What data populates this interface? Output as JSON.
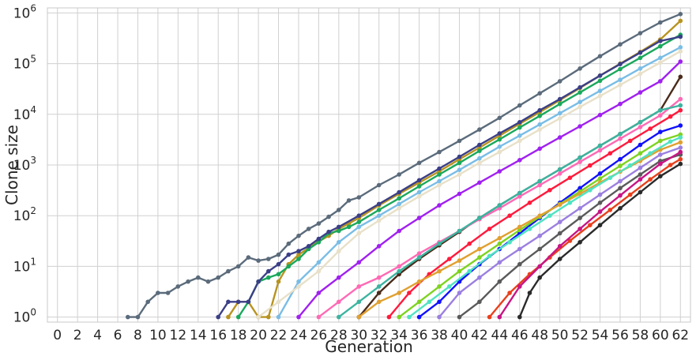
{
  "chart_data": {
    "type": "line",
    "xlabel": "Generation",
    "ylabel": "Clone size",
    "xlim": [
      -1,
      63
    ],
    "ylim_log10": [
      -0.1,
      6.1
    ],
    "y_scale": "log",
    "grid": true,
    "x_ticks": [
      "0",
      "2",
      "4",
      "6",
      "8",
      "10",
      "12",
      "14",
      "16",
      "18",
      "20",
      "22",
      "24",
      "26",
      "28",
      "30",
      "32",
      "34",
      "36",
      "38",
      "40",
      "42",
      "44",
      "46",
      "48",
      "50",
      "52",
      "54",
      "56",
      "58",
      "60",
      "62"
    ],
    "y_ticks": [
      {
        "base": "10",
        "exp": "0",
        "value": 1
      },
      {
        "base": "10",
        "exp": "1",
        "value": 10
      },
      {
        "base": "10",
        "exp": "2",
        "value": 100
      },
      {
        "base": "10",
        "exp": "3",
        "value": 1000
      },
      {
        "base": "10",
        "exp": "4",
        "value": 10000
      },
      {
        "base": "10",
        "exp": "5",
        "value": 100000
      },
      {
        "base": "10",
        "exp": "6",
        "value": 1000000
      }
    ],
    "series": [
      {
        "color": "#5b6b7b",
        "x": [
          7,
          8,
          9,
          10,
          11,
          12,
          13,
          14,
          15,
          16,
          17,
          18,
          19,
          20,
          21,
          22,
          23,
          24,
          25,
          26,
          27,
          28,
          29,
          30,
          32,
          34,
          36,
          38,
          40,
          42,
          44,
          46,
          48,
          50,
          52,
          54,
          56,
          58,
          60,
          62
        ],
        "y": [
          1,
          1,
          2,
          3,
          3,
          4,
          5,
          6,
          5,
          6,
          8,
          10,
          15,
          13,
          14,
          17,
          28,
          40,
          55,
          70,
          95,
          130,
          200,
          230,
          400,
          650,
          1100,
          1800,
          3000,
          5000,
          8500,
          15000,
          26000,
          45000,
          80000,
          140000,
          240000,
          400000,
          650000,
          950000
        ]
      },
      {
        "color": "#b8931f",
        "x": [
          17,
          18,
          19,
          20,
          21,
          22,
          23,
          24,
          25,
          26,
          27,
          28,
          29,
          30,
          32,
          34,
          36,
          38,
          40,
          42,
          44,
          46,
          48,
          50,
          52,
          54,
          56,
          58,
          60,
          62
        ],
        "y": [
          1,
          2,
          2,
          1,
          1,
          5,
          11,
          17,
          23,
          31,
          40,
          55,
          70,
          90,
          160,
          270,
          450,
          750,
          1300,
          2200,
          3800,
          6500,
          11000,
          19000,
          33000,
          58000,
          100000,
          170000,
          300000,
          700000
        ]
      },
      {
        "color": "#1aa85c",
        "x": [
          18,
          19,
          20,
          21,
          22,
          23,
          24,
          25,
          26,
          27,
          28,
          29,
          30,
          32,
          34,
          36,
          38,
          40,
          42,
          44,
          46,
          48,
          50,
          52,
          54,
          56,
          58,
          60,
          62
        ],
        "y": [
          1,
          2,
          5,
          6,
          7,
          10,
          14,
          22,
          30,
          45,
          50,
          60,
          75,
          130,
          220,
          380,
          650,
          1100,
          1900,
          3200,
          5500,
          9300,
          16000,
          27000,
          46000,
          78000,
          130000,
          220000,
          370000
        ]
      },
      {
        "color": "#3b3f87",
        "x": [
          16,
          17,
          18,
          19,
          20,
          21,
          22,
          23,
          24,
          25,
          26,
          27,
          28,
          30,
          32,
          34,
          36,
          38,
          40,
          42,
          44,
          46,
          48,
          50,
          52,
          54,
          56,
          58,
          60,
          62
        ],
        "y": [
          1,
          2,
          2,
          2,
          5,
          8,
          11,
          17,
          20,
          25,
          35,
          48,
          60,
          100,
          170,
          290,
          500,
          850,
          1450,
          2500,
          4200,
          7000,
          12000,
          20000,
          34000,
          58000,
          98000,
          165000,
          280000,
          340000
        ]
      },
      {
        "color": "#79bde6",
        "x": [
          22,
          24,
          26,
          28,
          30,
          32,
          34,
          36,
          38,
          40,
          42,
          44,
          46,
          48,
          50,
          52,
          54,
          56,
          58,
          60,
          62
        ],
        "y": [
          1,
          5,
          12,
          30,
          60,
          100,
          170,
          290,
          480,
          800,
          1350,
          2300,
          3800,
          6300,
          10500,
          17500,
          29000,
          48000,
          80000,
          130000,
          210000
        ]
      },
      {
        "color": "#a020f0",
        "x": [
          24,
          26,
          28,
          30,
          32,
          34,
          36,
          38,
          40,
          42,
          44,
          46,
          48,
          50,
          52,
          54,
          56,
          58,
          60,
          62
        ],
        "y": [
          1,
          3,
          6,
          12,
          25,
          50,
          90,
          160,
          270,
          450,
          750,
          1250,
          2100,
          3500,
          5800,
          9700,
          16000,
          27000,
          45000,
          110000
        ]
      },
      {
        "color": "#e8e0c8",
        "x": [
          20,
          22,
          24,
          26,
          28,
          30,
          32,
          34,
          36,
          38,
          40,
          42,
          44,
          46,
          48,
          50,
          52,
          54,
          56,
          58,
          60,
          62
        ],
        "y": [
          1,
          2,
          4,
          8,
          20,
          45,
          80,
          140,
          240,
          400,
          650,
          1100,
          1800,
          3000,
          5000,
          8300,
          14000,
          23000,
          38000,
          63000,
          105000,
          175000
        ]
      },
      {
        "color": "#4a2b1a",
        "x": [
          30,
          32,
          34,
          36,
          38,
          40,
          42,
          44,
          46,
          48,
          50,
          52,
          54,
          56,
          58,
          60,
          62
        ],
        "y": [
          1,
          3,
          7,
          14,
          26,
          48,
          90,
          160,
          280,
          480,
          820,
          1400,
          2400,
          4100,
          7000,
          12000,
          55000
        ]
      },
      {
        "color": "#ff69b4",
        "x": [
          26,
          28,
          30,
          32,
          34,
          36,
          38,
          40,
          42,
          44,
          46,
          48,
          50,
          52,
          54,
          56,
          58,
          60,
          62
        ],
        "y": [
          1,
          2,
          4,
          6,
          10,
          18,
          30,
          50,
          85,
          140,
          240,
          400,
          680,
          1150,
          1950,
          3300,
          5600,
          9500,
          20000
        ]
      },
      {
        "color": "#3cb4a0",
        "x": [
          28,
          30,
          32,
          34,
          36,
          38,
          40,
          42,
          44,
          46,
          48,
          50,
          52,
          54,
          56,
          58,
          60,
          62
        ],
        "y": [
          1,
          2,
          4,
          8,
          15,
          28,
          50,
          90,
          160,
          280,
          480,
          820,
          1400,
          2400,
          4100,
          7000,
          12000,
          15000
        ]
      },
      {
        "color": "#ff1a3c",
        "x": [
          33,
          35,
          37,
          39,
          41,
          43,
          45,
          47,
          49,
          51,
          53,
          55,
          57,
          59,
          61,
          62
        ],
        "y": [
          1,
          3,
          7,
          14,
          28,
          55,
          100,
          180,
          320,
          560,
          980,
          1700,
          3000,
          5200,
          9000,
          12000
        ]
      },
      {
        "color": "#1010ff",
        "x": [
          36,
          38,
          40,
          42,
          44,
          46,
          48,
          50,
          52,
          54,
          56,
          58,
          60,
          62
        ],
        "y": [
          1,
          2,
          5,
          11,
          22,
          45,
          90,
          180,
          350,
          680,
          1300,
          2500,
          4500,
          6000
        ]
      },
      {
        "color": "#7ed321",
        "x": [
          34,
          36,
          38,
          40,
          42,
          44,
          46,
          48,
          50,
          52,
          54,
          56,
          58,
          60,
          62
        ],
        "y": [
          1,
          2,
          4,
          8,
          15,
          28,
          52,
          95,
          170,
          300,
          540,
          960,
          1700,
          3000,
          4000
        ]
      },
      {
        "color": "#e0a030",
        "x": [
          30,
          32,
          34,
          36,
          38,
          40,
          42,
          44,
          46,
          48,
          50,
          52,
          54,
          56,
          58,
          60,
          62
        ],
        "y": [
          1,
          2,
          3,
          5,
          8,
          13,
          22,
          36,
          60,
          100,
          165,
          270,
          450,
          740,
          1200,
          2000,
          2800
        ]
      },
      {
        "color": "#9b7fe0",
        "x": [
          38,
          40,
          42,
          44,
          46,
          48,
          50,
          52,
          54,
          56,
          58,
          60,
          62
        ],
        "y": [
          1,
          3,
          6,
          12,
          22,
          40,
          75,
          140,
          260,
          480,
          880,
          1600,
          2200
        ]
      },
      {
        "color": "#5a5a5a",
        "x": [
          40,
          42,
          44,
          46,
          48,
          50,
          52,
          54,
          56,
          58,
          60,
          62
        ],
        "y": [
          1,
          2,
          5,
          11,
          22,
          45,
          90,
          180,
          350,
          650,
          1200,
          1600
        ]
      },
      {
        "color": "#e8401c",
        "x": [
          43,
          45,
          47,
          49,
          51,
          53,
          55,
          57,
          59,
          61,
          62
        ],
        "y": [
          1,
          3,
          7,
          15,
          32,
          65,
          130,
          260,
          520,
          1000,
          1300
        ]
      },
      {
        "color": "#2a2a2a",
        "x": [
          46,
          47,
          48,
          50,
          52,
          54,
          56,
          58,
          60,
          62
        ],
        "y": [
          1,
          3,
          6,
          14,
          30,
          65,
          140,
          290,
          600,
          1050
        ]
      },
      {
        "color": "#50e3c2",
        "x": [
          35,
          37,
          39,
          41,
          43,
          45,
          47,
          49,
          51,
          53,
          55,
          57,
          59,
          61,
          62
        ],
        "y": [
          1,
          2,
          4,
          8,
          16,
          30,
          55,
          100,
          180,
          320,
          560,
          980,
          1700,
          2900,
          3500
        ]
      },
      {
        "color": "#c71585",
        "x": [
          44,
          46,
          48,
          50,
          52,
          54,
          56,
          58,
          60,
          62
        ],
        "y": [
          1,
          4,
          10,
          25,
          55,
          120,
          250,
          520,
          1050,
          1800
        ]
      }
    ]
  }
}
